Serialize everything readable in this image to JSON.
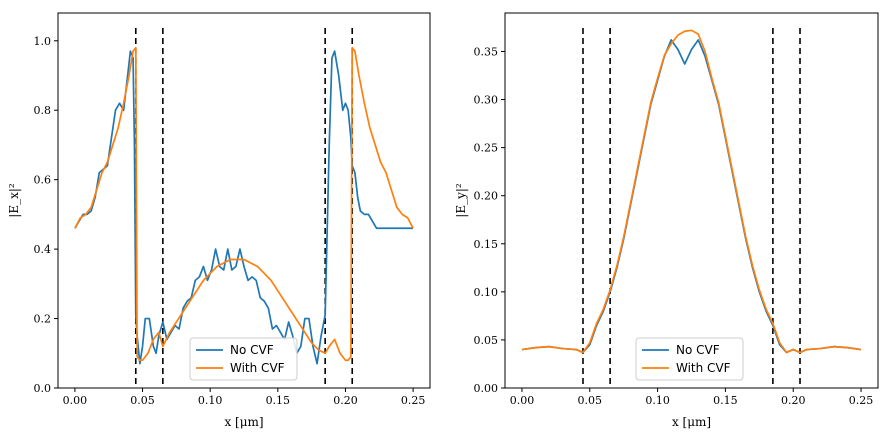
{
  "colors": {
    "series_no_cvf": "#1f77b4",
    "series_with_cvf": "#ff7f0e",
    "vlines": "#000000",
    "axes": "#000000"
  },
  "chart_data": [
    {
      "type": "line",
      "title": "",
      "xlabel": "x [μm]",
      "ylabel": "|E_x|²",
      "xlim": [
        -0.0125,
        0.2625
      ],
      "ylim": [
        0.0,
        1.08
      ],
      "xticks": [
        0.0,
        0.05,
        0.1,
        0.15,
        0.2,
        0.25
      ],
      "xtick_labels": [
        "0.00",
        "0.05",
        "0.10",
        "0.15",
        "0.20",
        "0.25"
      ],
      "yticks": [
        0.0,
        0.2,
        0.4,
        0.6,
        0.8,
        1.0
      ],
      "ytick_labels": [
        "0.0",
        "0.2",
        "0.4",
        "0.6",
        "0.8",
        "1.0"
      ],
      "vlines": [
        0.045,
        0.065,
        0.185,
        0.205
      ],
      "legend": {
        "position": "bottom-center",
        "entries": [
          "No CVF",
          "With CVF"
        ]
      },
      "series": [
        {
          "name": "No CVF",
          "x": [
            0.0,
            0.003,
            0.006,
            0.009,
            0.012,
            0.015,
            0.018,
            0.021,
            0.024,
            0.027,
            0.03,
            0.033,
            0.036,
            0.039,
            0.041,
            0.043,
            0.044,
            0.045,
            0.046,
            0.048,
            0.05,
            0.052,
            0.055,
            0.058,
            0.06,
            0.062,
            0.065,
            0.068,
            0.071,
            0.074,
            0.077,
            0.08,
            0.083,
            0.086,
            0.089,
            0.092,
            0.095,
            0.098,
            0.101,
            0.104,
            0.107,
            0.11,
            0.113,
            0.116,
            0.119,
            0.122,
            0.125,
            0.128,
            0.131,
            0.134,
            0.137,
            0.14,
            0.143,
            0.146,
            0.149,
            0.152,
            0.155,
            0.158,
            0.161,
            0.164,
            0.167,
            0.17,
            0.173,
            0.176,
            0.179,
            0.182,
            0.185,
            0.188,
            0.19,
            0.192,
            0.195,
            0.198,
            0.2,
            0.202,
            0.204,
            0.205,
            0.206,
            0.207,
            0.209,
            0.211,
            0.214,
            0.217,
            0.22,
            0.223,
            0.226,
            0.229,
            0.232,
            0.235,
            0.238,
            0.241,
            0.244,
            0.247,
            0.25
          ],
          "y": [
            0.46,
            0.48,
            0.5,
            0.5,
            0.51,
            0.55,
            0.62,
            0.63,
            0.64,
            0.72,
            0.8,
            0.82,
            0.8,
            0.9,
            0.97,
            0.95,
            0.7,
            0.21,
            0.15,
            0.07,
            0.12,
            0.2,
            0.2,
            0.12,
            0.1,
            0.15,
            0.19,
            0.14,
            0.16,
            0.18,
            0.17,
            0.23,
            0.25,
            0.26,
            0.31,
            0.32,
            0.35,
            0.31,
            0.34,
            0.4,
            0.35,
            0.34,
            0.4,
            0.34,
            0.35,
            0.4,
            0.35,
            0.31,
            0.32,
            0.31,
            0.26,
            0.25,
            0.23,
            0.17,
            0.18,
            0.16,
            0.14,
            0.19,
            0.15,
            0.1,
            0.12,
            0.2,
            0.2,
            0.12,
            0.07,
            0.15,
            0.21,
            0.7,
            0.95,
            0.97,
            0.9,
            0.8,
            0.82,
            0.8,
            0.72,
            0.64,
            0.63,
            0.62,
            0.55,
            0.51,
            0.5,
            0.5,
            0.48,
            0.46,
            0.46,
            0.46,
            0.46,
            0.46,
            0.46,
            0.46,
            0.46,
            0.46,
            0.46
          ]
        },
        {
          "name": "With CVF",
          "x": [
            0.0,
            0.004,
            0.008,
            0.012,
            0.016,
            0.02,
            0.024,
            0.028,
            0.032,
            0.036,
            0.04,
            0.043,
            0.045,
            0.046,
            0.048,
            0.05,
            0.054,
            0.058,
            0.062,
            0.065,
            0.07,
            0.075,
            0.08,
            0.085,
            0.09,
            0.095,
            0.1,
            0.105,
            0.11,
            0.115,
            0.12,
            0.125,
            0.13,
            0.135,
            0.14,
            0.145,
            0.15,
            0.155,
            0.16,
            0.165,
            0.17,
            0.175,
            0.18,
            0.185,
            0.188,
            0.192,
            0.196,
            0.2,
            0.202,
            0.204,
            0.205,
            0.207,
            0.21,
            0.214,
            0.218,
            0.222,
            0.226,
            0.23,
            0.234,
            0.238,
            0.242,
            0.246,
            0.25
          ],
          "y": [
            0.46,
            0.49,
            0.5,
            0.52,
            0.57,
            0.62,
            0.65,
            0.7,
            0.75,
            0.82,
            0.9,
            0.97,
            0.98,
            0.09,
            0.08,
            0.08,
            0.1,
            0.14,
            0.16,
            0.12,
            0.16,
            0.19,
            0.22,
            0.25,
            0.28,
            0.31,
            0.33,
            0.35,
            0.36,
            0.37,
            0.37,
            0.37,
            0.36,
            0.35,
            0.33,
            0.31,
            0.28,
            0.25,
            0.22,
            0.19,
            0.16,
            0.13,
            0.11,
            0.1,
            0.12,
            0.14,
            0.1,
            0.08,
            0.08,
            0.09,
            0.98,
            0.97,
            0.9,
            0.82,
            0.75,
            0.7,
            0.65,
            0.62,
            0.57,
            0.52,
            0.5,
            0.49,
            0.46
          ]
        }
      ]
    },
    {
      "type": "line",
      "title": "",
      "xlabel": "x [μm]",
      "ylabel": "|E_y|²",
      "xlim": [
        -0.0125,
        0.2625
      ],
      "ylim": [
        0.0,
        0.39
      ],
      "xticks": [
        0.0,
        0.05,
        0.1,
        0.15,
        0.2,
        0.25
      ],
      "xtick_labels": [
        "0.00",
        "0.05",
        "0.10",
        "0.15",
        "0.20",
        "0.25"
      ],
      "yticks": [
        0.0,
        0.05,
        0.1,
        0.15,
        0.2,
        0.25,
        0.3,
        0.35
      ],
      "ytick_labels": [
        "0.00",
        "0.05",
        "0.10",
        "0.15",
        "0.20",
        "0.25",
        "0.30",
        "0.35"
      ],
      "vlines": [
        0.045,
        0.065,
        0.185,
        0.205
      ],
      "legend": {
        "position": "bottom-center",
        "entries": [
          "No CVF",
          "With CVF"
        ]
      },
      "series": [
        {
          "name": "No CVF",
          "x": [
            0.0,
            0.01,
            0.02,
            0.03,
            0.04,
            0.045,
            0.05,
            0.055,
            0.06,
            0.065,
            0.07,
            0.075,
            0.08,
            0.085,
            0.09,
            0.095,
            0.1,
            0.105,
            0.11,
            0.115,
            0.12,
            0.125,
            0.13,
            0.135,
            0.14,
            0.145,
            0.15,
            0.155,
            0.16,
            0.165,
            0.17,
            0.175,
            0.18,
            0.185,
            0.19,
            0.195,
            0.2,
            0.205,
            0.21,
            0.22,
            0.23,
            0.24,
            0.25
          ],
          "y": [
            0.04,
            0.042,
            0.043,
            0.041,
            0.04,
            0.037,
            0.045,
            0.065,
            0.08,
            0.1,
            0.125,
            0.155,
            0.19,
            0.225,
            0.26,
            0.295,
            0.32,
            0.345,
            0.362,
            0.352,
            0.337,
            0.352,
            0.362,
            0.345,
            0.32,
            0.295,
            0.26,
            0.225,
            0.19,
            0.155,
            0.125,
            0.1,
            0.08,
            0.065,
            0.045,
            0.037,
            0.04,
            0.037,
            0.04,
            0.041,
            0.043,
            0.042,
            0.04
          ]
        },
        {
          "name": "With CVF",
          "x": [
            0.0,
            0.01,
            0.02,
            0.03,
            0.04,
            0.045,
            0.05,
            0.055,
            0.06,
            0.065,
            0.07,
            0.075,
            0.08,
            0.085,
            0.09,
            0.095,
            0.1,
            0.105,
            0.11,
            0.115,
            0.12,
            0.125,
            0.13,
            0.135,
            0.14,
            0.145,
            0.15,
            0.155,
            0.16,
            0.165,
            0.17,
            0.175,
            0.18,
            0.185,
            0.19,
            0.195,
            0.2,
            0.205,
            0.21,
            0.22,
            0.23,
            0.24,
            0.25
          ],
          "y": [
            0.04,
            0.042,
            0.043,
            0.041,
            0.04,
            0.037,
            0.047,
            0.067,
            0.082,
            0.102,
            0.127,
            0.157,
            0.192,
            0.227,
            0.262,
            0.297,
            0.322,
            0.346,
            0.358,
            0.367,
            0.371,
            0.372,
            0.368,
            0.35,
            0.322,
            0.297,
            0.262,
            0.227,
            0.192,
            0.157,
            0.127,
            0.102,
            0.082,
            0.067,
            0.047,
            0.037,
            0.04,
            0.037,
            0.04,
            0.041,
            0.043,
            0.042,
            0.04
          ]
        }
      ]
    }
  ]
}
